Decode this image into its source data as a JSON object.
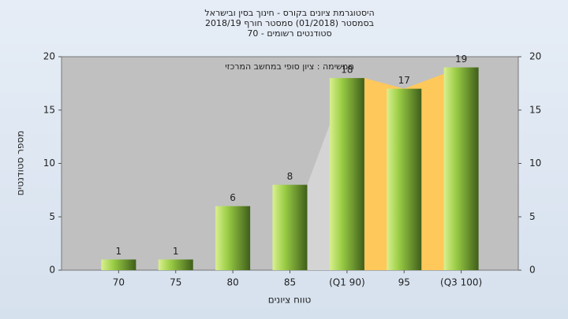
{
  "chart_data": {
    "type": "bar",
    "title": [
      "היסטוגרמת ציונים בקורס - חינוך בסין ובישראל",
      "בסמסטר  (01/2018)  סמסטר חורף 2018/19",
      "סטודנטים רשומים - 70"
    ],
    "annotation": "ממשימה : ציון סופי במחשב המרכזי",
    "x_label": "טווח ציונים",
    "y_label": "מספר סטודנטים",
    "categories": [
      "70",
      "75",
      "80",
      "85",
      "(Q1 90)",
      "95",
      "(Q3 100)"
    ],
    "values": [
      1,
      1,
      6,
      8,
      18,
      17,
      19
    ],
    "color": "#9acd45",
    "area_color": "#ffc85a",
    "ylim": [
      0,
      20
    ],
    "yticks": [
      0,
      5,
      10,
      15,
      20
    ],
    "y2lim": [
      0,
      20
    ],
    "y2ticks": [
      0,
      5,
      10,
      15,
      20
    ],
    "grid": false
  }
}
